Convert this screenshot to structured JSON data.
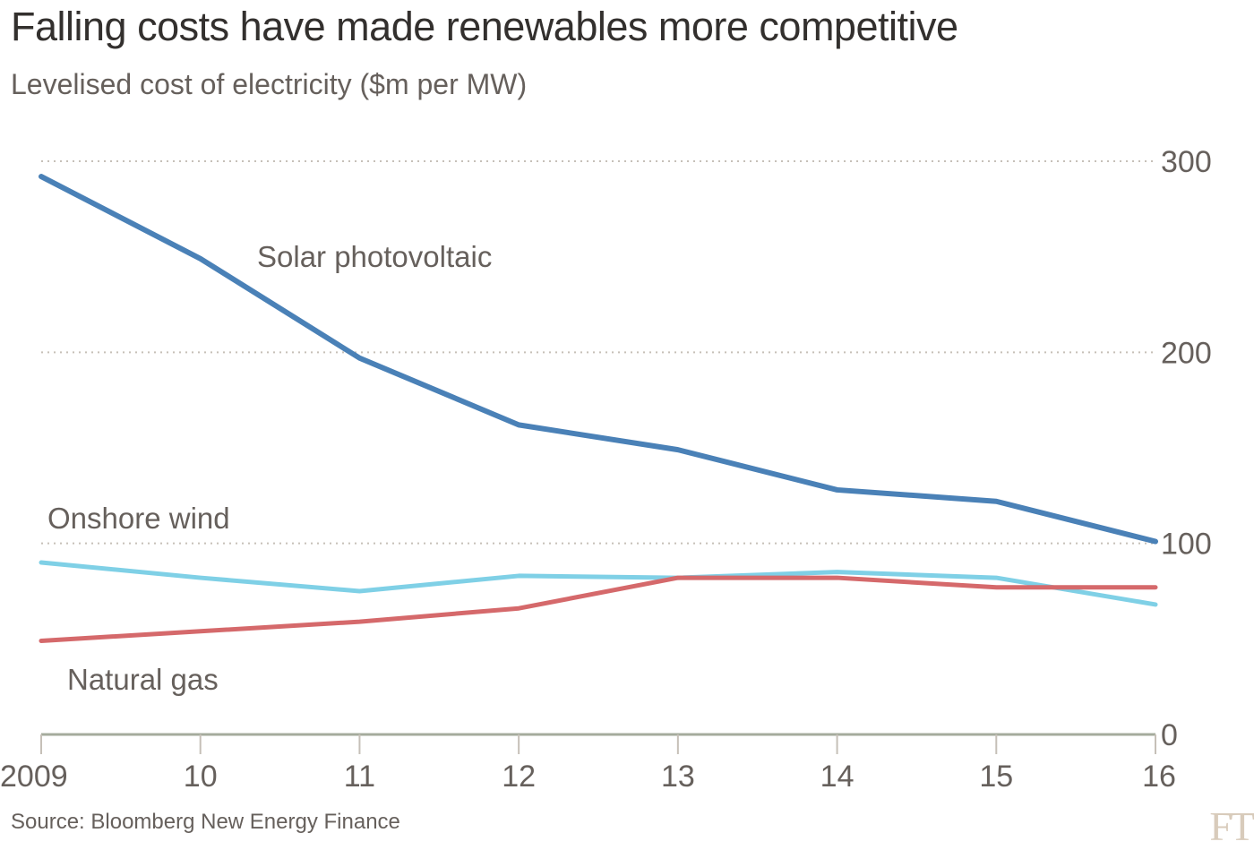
{
  "header": {
    "title": "Falling costs have made renewables more competitive",
    "subtitle": "Levelised cost of electricity ($m per MW)"
  },
  "footer": {
    "source": "Source: Bloomberg New Energy Finance",
    "logo": "FT"
  },
  "chart_data": {
    "type": "line",
    "title": "Falling costs have made renewables more competitive",
    "subtitle": "Levelised cost of electricity ($m per MW)",
    "xlabel": "",
    "ylabel": "",
    "x": [
      "2009",
      "10",
      "11",
      "12",
      "13",
      "14",
      "15",
      "16"
    ],
    "ylim": [
      0,
      300
    ],
    "yticks": [
      0,
      100,
      200,
      300
    ],
    "y_axis_side": "right",
    "grid": "horizontal dotted",
    "legend": "inline labels",
    "series": [
      {
        "name": "Solar photovoltaic",
        "color": "#4a81b7",
        "values": [
          292,
          249,
          197,
          162,
          149,
          128,
          122,
          101
        ]
      },
      {
        "name": "Onshore wind",
        "color": "#7fd0e6",
        "values": [
          90,
          82,
          75,
          83,
          82,
          85,
          82,
          68
        ]
      },
      {
        "name": "Natural gas",
        "color": "#d5696b",
        "values": [
          49,
          54,
          59,
          66,
          82,
          82,
          77,
          77
        ]
      }
    ],
    "source": "Source: Bloomberg New Energy Finance"
  }
}
